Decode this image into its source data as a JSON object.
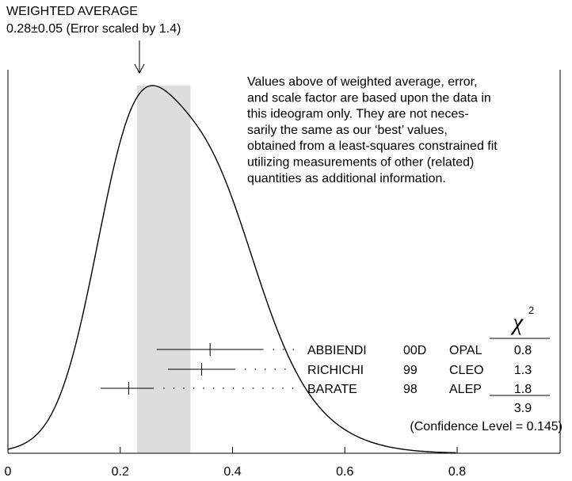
{
  "header": {
    "title": "WEIGHTED AVERAGE",
    "value_line": "0.28±0.05 (Error scaled by 1.4)"
  },
  "note_lines": [
    "Values above of weighted average, error,",
    "and scale factor are based upon the data in",
    "this ideogram only.  They are not neces-",
    "sarily the same as our ‘best’ values,",
    "obtained from a least-squares constrained fit",
    "utilizing measurements of other (related)",
    "quantities as additional information."
  ],
  "chart_data": {
    "type": "scatter",
    "xlim": [
      0,
      0.8
    ],
    "x_ticks": [
      "0",
      "0.2",
      "0.4",
      "0.6",
      "0.8"
    ],
    "weighted_average": {
      "value": 0.28,
      "error": 0.05,
      "scale_factor": 1.4
    },
    "band": [
      0.23,
      0.325
    ],
    "measurements": [
      {
        "author": "ABBIENDI",
        "year": "00D",
        "experiment": "OPAL",
        "value": 0.36,
        "err_low": 0.095,
        "err_high": 0.095,
        "chi2": "0.8"
      },
      {
        "author": "RICHICHI",
        "year": "99",
        "experiment": "CLEO",
        "value": 0.345,
        "err_low": 0.06,
        "err_high": 0.06,
        "chi2": "1.3"
      },
      {
        "author": "BARATE",
        "year": "98",
        "experiment": "ALEP",
        "value": 0.215,
        "err_low": 0.05,
        "err_high": 0.045,
        "chi2": "1.8"
      }
    ],
    "chi2_label": "χ",
    "chi2_exponent": "2",
    "chi2_total": "3.9",
    "confidence_text": "(Confidence Level = 0.145)"
  }
}
